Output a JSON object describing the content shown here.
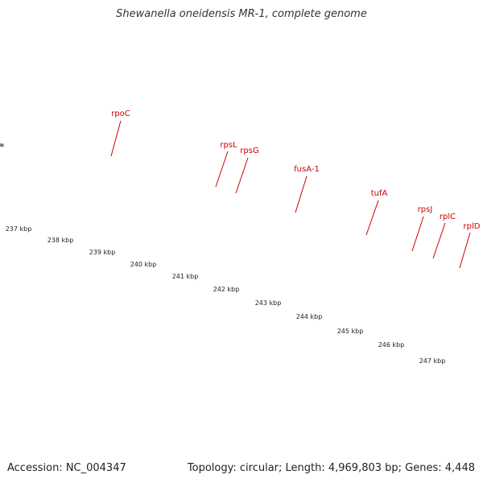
{
  "title": "Shewanella oneidensis MR-1, complete genome",
  "footer": {
    "accession": "Accession: NC_004347",
    "summary": "Topology: circular; Length: 4,969,803 bp; Genes: 4,448"
  },
  "colors": {
    "rpoC": "#ff8c00",
    "ribosomal": "#f08080",
    "cds": "#ee1111",
    "backbone": "#808080",
    "ticks": "#228b22",
    "label": "#cc0000"
  },
  "scale_labels": [
    "237 kbp",
    "238 kbp",
    "239 kbp",
    "240 kbp",
    "241 kbp",
    "242 kbp",
    "243 kbp",
    "244 kbp",
    "245 kbp",
    "246 kbp",
    "247 kbp"
  ],
  "genes": [
    {
      "label": "rpoC"
    },
    {
      "label": "rpsL"
    },
    {
      "label": "rpsG"
    },
    {
      "label": "fusA-1"
    },
    {
      "label": "tufA"
    },
    {
      "label": "rpsJ"
    },
    {
      "label": "rplC"
    },
    {
      "label": "rplD"
    }
  ]
}
